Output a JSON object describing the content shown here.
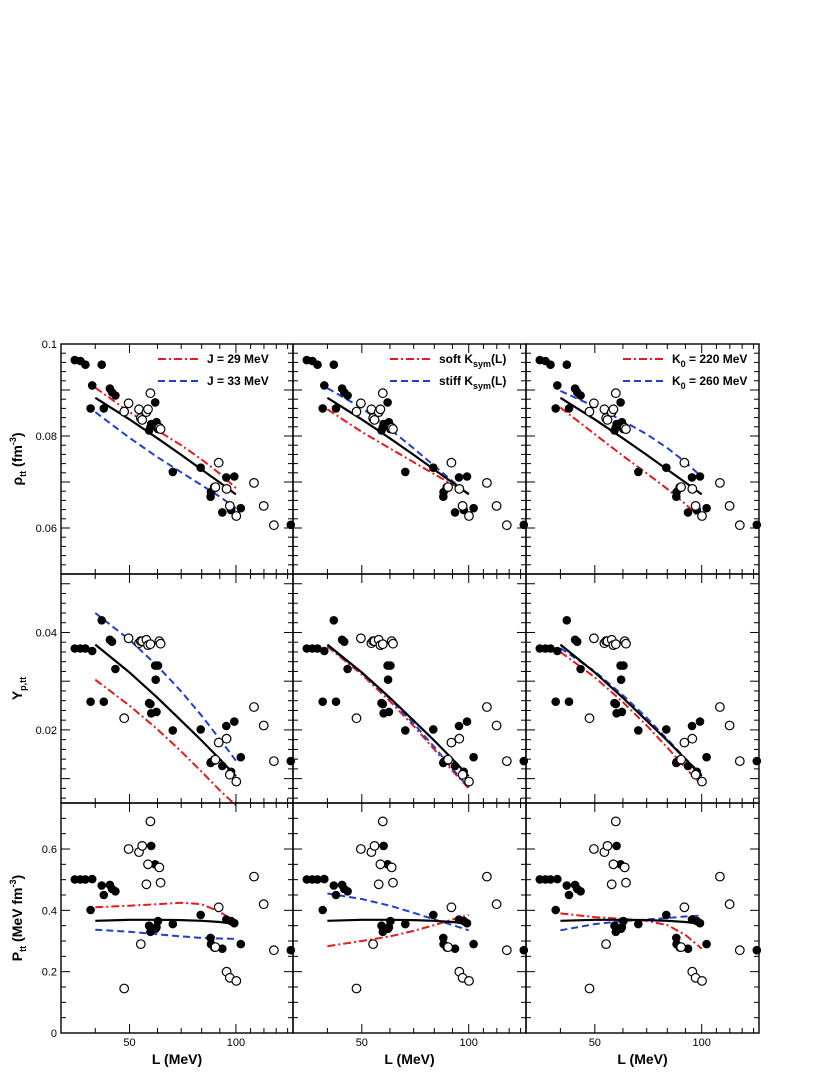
{
  "figure": {
    "x_title": "L (MeV)",
    "x_ticks": [
      "50",
      "100"
    ],
    "x_axis": {
      "type": "log",
      "range": [
        32,
        145
      ]
    }
  },
  "rows": [
    {
      "key": "rho",
      "y_title": "ρ",
      "y_title_sub": "tt",
      "y_title_tail": " (fm",
      "y_title_sup": "-3",
      "y_title_end": ")",
      "y_range": [
        0.05,
        0.1
      ],
      "y_ticks": [
        [
          "0.06",
          0.06
        ],
        [
          "0.08",
          0.08
        ],
        [
          "0.1",
          0.1
        ]
      ]
    },
    {
      "key": "yp",
      "y_title": "Y",
      "y_title_sub": "p,tt",
      "y_title_tail": "",
      "y_title_sup": "",
      "y_title_end": "",
      "y_range": [
        0.005,
        0.052
      ],
      "y_ticks": [
        [
          "0.02",
          0.02
        ],
        [
          "0.04",
          0.04
        ]
      ]
    },
    {
      "key": "p",
      "y_title": "P",
      "y_title_sub": "tt",
      "y_title_tail": " (MeV fm",
      "y_title_sup": "-3",
      "y_title_end": ")",
      "y_range": [
        0,
        0.75
      ],
      "y_ticks": [
        [
          "0",
          0
        ],
        [
          "0.2",
          0.2
        ],
        [
          "0.4",
          0.4
        ],
        [
          "0.6",
          0.6
        ]
      ]
    }
  ],
  "legends": [
    {
      "entries": [
        {
          "text": "J = 29 MeV",
          "sub": "",
          "tail": "",
          "color": "#e41a1c",
          "style": "dashdot"
        },
        {
          "text": "J = 33 MeV",
          "sub": "",
          "tail": "",
          "color": "#1f3fd1",
          "style": "dash"
        }
      ]
    },
    {
      "entries": [
        {
          "text": "soft K",
          "sub": "sym",
          "tail": "(L)",
          "color": "#e41a1c",
          "style": "dashdot"
        },
        {
          "text": "stiff K",
          "sub": "sym",
          "tail": "(L)",
          "color": "#1f3fd1",
          "style": "dash"
        }
      ]
    },
    {
      "entries": [
        {
          "text": "K",
          "sub": "0",
          "tail": " = 220 MeV",
          "color": "#e41a1c",
          "style": "dashdot"
        },
        {
          "text": "K",
          "sub": "0",
          "tail": " = 260 MeV",
          "color": "#1f3fd1",
          "style": "dash"
        }
      ]
    }
  ],
  "chart_data": {
    "type": "scatter",
    "x_label": "L (MeV)",
    "filled_points": {
      "L": [
        35.0,
        36.3,
        37.5,
        38.8,
        39.2,
        41.7,
        42.3,
        44.0,
        44.6,
        45.6,
        56.8,
        57.3,
        57.6,
        59.1,
        59.3,
        59.6,
        60.2,
        66.3,
        79.5,
        84.8,
        85.0,
        91.5,
        93.9,
        96.9,
        98.9,
        103.2,
        142.9
      ],
      "rho": [
        0.0965,
        0.0963,
        0.0955,
        0.086,
        0.091,
        0.0955,
        0.086,
        0.0903,
        0.0895,
        0.0888,
        0.0812,
        0.0819,
        0.0826,
        0.0873,
        0.0827,
        0.083,
        0.0815,
        0.0722,
        0.0731,
        0.0668,
        0.0678,
        0.0634,
        0.071,
        0.0639,
        0.0712,
        0.0643,
        0.0607
      ],
      "Yp": [
        0.0367,
        0.0367,
        0.0367,
        0.0258,
        0.0362,
        0.0425,
        0.0258,
        0.0385,
        0.0381,
        0.0325,
        0.0255,
        0.0253,
        0.0234,
        0.0332,
        0.0303,
        0.0237,
        0.0332,
        0.0199,
        0.0201,
        0.0132,
        0.0134,
        0.0126,
        0.0208,
        0.0114,
        0.0217,
        0.0144,
        0.0136
      ],
      "P": [
        0.501,
        0.501,
        0.501,
        0.401,
        0.502,
        0.481,
        0.45,
        0.483,
        0.47,
        0.462,
        0.35,
        0.33,
        0.61,
        0.55,
        0.34,
        0.345,
        0.365,
        0.355,
        0.385,
        0.31,
        0.29,
        0.275,
        0.37,
        0.365,
        0.358,
        0.29,
        0.27
      ]
    },
    "open_points": {
      "L": [
        48.3,
        49.7,
        53.2,
        53.8,
        54.3,
        55.8,
        56.4,
        57.3,
        60.7,
        61.2,
        87.0,
        87.5,
        89.4,
        94.1,
        96.1,
        100.2,
        112.5,
        119.8,
        128.0
      ],
      "rho": [
        0.0853,
        0.0871,
        0.0858,
        0.0839,
        0.0835,
        0.0852,
        0.0858,
        0.0893,
        0.0818,
        0.0815,
        0.0688,
        0.0689,
        0.0742,
        0.0685,
        0.0648,
        0.0626,
        0.0698,
        0.0648,
        0.0606
      ],
      "Yp": [
        0.0224,
        0.0388,
        0.0378,
        0.0382,
        0.0382,
        0.0385,
        0.0374,
        0.0376,
        0.0382,
        0.0377,
        0.0138,
        0.0139,
        0.0174,
        0.0182,
        0.0108,
        0.0094,
        0.0247,
        0.0209,
        0.0136
      ],
      "P": [
        0.145,
        0.6,
        0.59,
        0.29,
        0.61,
        0.485,
        0.55,
        0.69,
        0.54,
        0.49,
        0.28,
        0.28,
        0.41,
        0.2,
        0.18,
        0.17,
        0.51,
        0.42,
        0.27
      ]
    },
    "fits": {
      "L": [
        40,
        50,
        60,
        70,
        80,
        90,
        100
      ],
      "rho": {
        "black": [
          0.0883,
          0.0836,
          0.0795,
          0.0759,
          0.0727,
          0.0699,
          0.0673
        ],
        "J29": [
          0.0905,
          0.0852,
          0.0812,
          0.078,
          0.0749,
          0.0718,
          0.0687
        ],
        "J33": [
          0.0852,
          0.0796,
          0.0754,
          0.0721,
          0.0693,
          0.0668,
          0.0643
        ],
        "Ksym_soft": [
          0.0858,
          0.0809,
          0.0773,
          0.0743,
          0.0717,
          0.0695,
          0.0675
        ],
        "Ksym_stiff": [
          0.0904,
          0.0861,
          0.0815,
          0.0773,
          0.0735,
          0.0702,
          0.0673
        ],
        "K0_220": [
          0.0862,
          0.0804,
          0.0757,
          0.0719,
          0.0685,
          0.0652,
          0.0618
        ],
        "K0_260": [
          0.0898,
          0.0864,
          0.0833,
          0.0804,
          0.0774,
          0.0743,
          0.0711
        ]
      },
      "Yp": {
        "black": [
          0.0375,
          0.0318,
          0.0266,
          0.0219,
          0.0178,
          0.014,
          0.0105
        ],
        "J29": [
          0.0303,
          0.025,
          0.0201,
          0.0156,
          0.0114,
          0.0076,
          0.0045
        ],
        "J33": [
          0.044,
          0.0385,
          0.0331,
          0.0279,
          0.0229,
          0.0181,
          0.0137
        ],
        "Ksym_soft": [
          0.0371,
          0.0314,
          0.0259,
          0.0208,
          0.016,
          0.0116,
          0.008
        ],
        "Ksym_stiff": [
          0.0373,
          0.0317,
          0.0264,
          0.0213,
          0.0165,
          0.012,
          0.0082
        ],
        "K0_220": [
          0.036,
          0.0308,
          0.0257,
          0.0209,
          0.0164,
          0.0122,
          0.0087
        ],
        "K0_260": [
          0.0368,
          0.032,
          0.0271,
          0.0225,
          0.0181,
          0.0141,
          0.0108
        ]
      },
      "P": {
        "black": [
          0.366,
          0.369,
          0.369,
          0.368,
          0.366,
          0.362,
          0.356
        ],
        "J29": [
          0.41,
          0.415,
          0.42,
          0.425,
          0.42,
          0.395,
          0.362
        ],
        "J33": [
          0.337,
          0.33,
          0.322,
          0.315,
          0.31,
          0.308,
          0.307
        ],
        "Ksym_soft": [
          0.283,
          0.3,
          0.315,
          0.333,
          0.352,
          0.37,
          0.385
        ],
        "Ksym_stiff": [
          0.455,
          0.437,
          0.415,
          0.392,
          0.37,
          0.352,
          0.335
        ],
        "K0_220": [
          0.39,
          0.378,
          0.372,
          0.366,
          0.352,
          0.32,
          0.275
        ],
        "K0_260": [
          0.335,
          0.355,
          0.365,
          0.37,
          0.375,
          0.38,
          0.383
        ]
      }
    },
    "panel_lines": [
      {
        "red": "J29",
        "blue": "J33"
      },
      {
        "red": "Ksym_soft",
        "blue": "Ksym_stiff"
      },
      {
        "red": "K0_220",
        "blue": "K0_260"
      }
    ]
  }
}
